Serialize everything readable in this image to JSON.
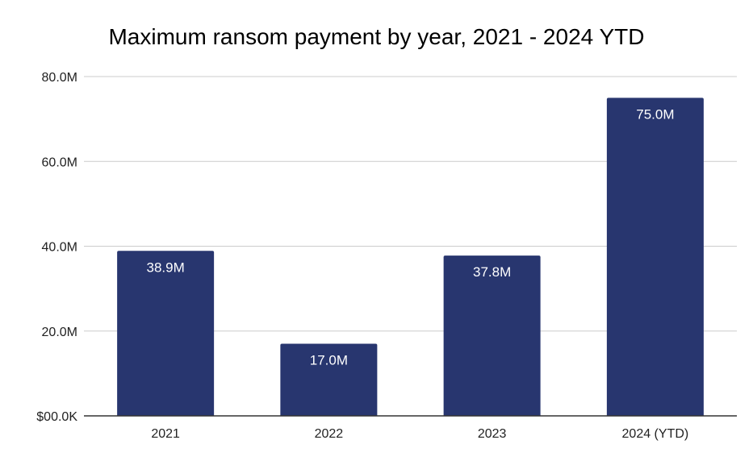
{
  "chart_data": {
    "type": "bar",
    "title": "Maximum ransom payment by year, 2021 - 2024 YTD",
    "categories": [
      "2021",
      "2022",
      "2023",
      "2024 (YTD)"
    ],
    "values": [
      38.9,
      17.0,
      37.8,
      75.0
    ],
    "data_labels": [
      "38.9M",
      "17.0M",
      "37.8M",
      "75.0M"
    ],
    "value_unit": "M",
    "ylim": [
      0,
      80
    ],
    "yticks": [
      0,
      20,
      40,
      60,
      80
    ],
    "ytick_labels": [
      "$00.0K",
      "20.0M",
      "40.0M",
      "60.0M",
      "80.0M"
    ],
    "xlabel": "",
    "ylabel": "",
    "grid": true,
    "legend": "none",
    "colors": {
      "bar": "#28366f",
      "grid": "#cccccc",
      "axis": "#333333",
      "data_label": "#ffffff"
    }
  }
}
